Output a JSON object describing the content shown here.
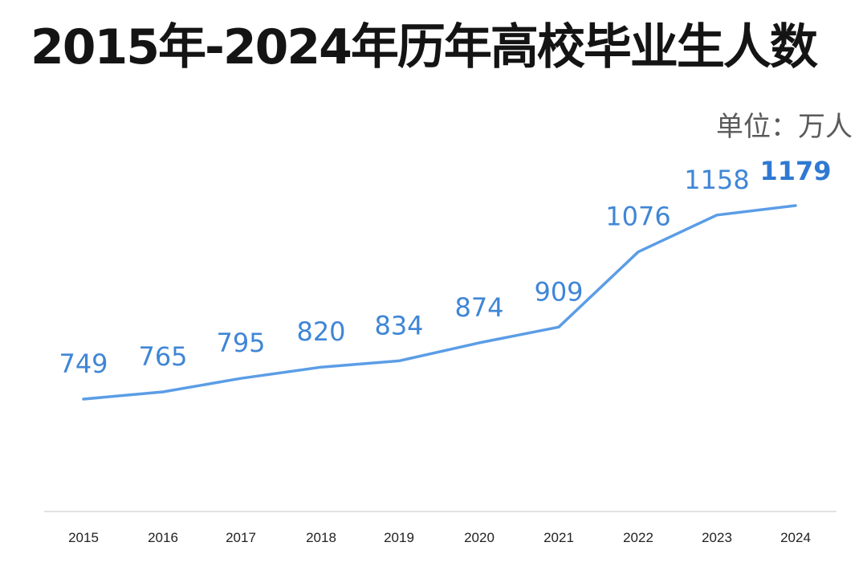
{
  "title": "2015年-2024年历年高校毕业生人数",
  "unit_label": "单位：万人",
  "colors": {
    "line": "#5b9de6",
    "label": "#3f86d6",
    "axis": "#e2e2e2",
    "drop_line_top": "#bcd6f5"
  },
  "chart_data": {
    "type": "line",
    "title": "2015年-2024年历年高校毕业生人数",
    "unit": "单位：万人",
    "categories": [
      "2015",
      "2016",
      "2017",
      "2018",
      "2019",
      "2020",
      "2021",
      "2022",
      "2023",
      "2024"
    ],
    "series": [
      {
        "values": [
          749,
          765,
          795,
          820,
          834,
          874,
          909,
          1076,
          1158,
          1179
        ]
      }
    ],
    "value_labels": [
      "749",
      "765",
      "795",
      "820",
      "834",
      "874",
      "909",
      "1076",
      "1158",
      "1179"
    ],
    "grid": false,
    "legend": "none"
  }
}
